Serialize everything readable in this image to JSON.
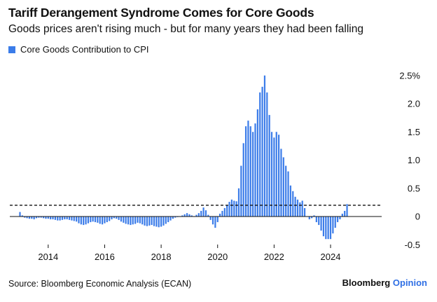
{
  "header": {
    "title": "Tariff Derangement Syndrome Comes for Core Goods",
    "subtitle": "Goods prices aren't rising much - but for many years they had been falling"
  },
  "footer": {
    "source": "Source: Bloomberg Economic Analysis (ECAN)",
    "brand_main": "Bloomberg",
    "brand_accent": "Opinion"
  },
  "colors": {
    "bar": "#3b7ce9",
    "brand_accent": "#2f6fe4"
  },
  "chart_data": {
    "type": "bar",
    "title": "Tariff Derangement Syndrome Comes for Core Goods",
    "subtitle": "Goods prices aren't rising much - but for many years they had been falling",
    "legend": [
      "Core Goods Contribution to CPI"
    ],
    "legend_position": "top-left",
    "xlabel": "",
    "ylabel": "",
    "y_unit_suffix": "%",
    "ylim": [
      -0.7,
      2.5
    ],
    "yticks": [
      -0.5,
      0,
      0.5,
      1.0,
      1.5,
      2.0,
      2.5
    ],
    "ytick_labels": [
      "-0.5",
      "0",
      "0.5",
      "1.0",
      "1.5",
      "2.0",
      "2.5%"
    ],
    "xticks": [
      "2014",
      "2016",
      "2018",
      "2020",
      "2022",
      "2024"
    ],
    "x_start": "2013-01",
    "frequency": "monthly",
    "reference_line": {
      "value": 0.2,
      "style": "dashed"
    },
    "grid": false,
    "series": [
      {
        "name": "Core Goods Contribution to CPI",
        "values": [
          0.08,
          0.02,
          -0.02,
          -0.03,
          -0.04,
          -0.04,
          -0.05,
          -0.03,
          -0.02,
          -0.02,
          -0.03,
          -0.04,
          -0.04,
          -0.05,
          -0.05,
          -0.06,
          -0.07,
          -0.07,
          -0.06,
          -0.05,
          -0.05,
          -0.06,
          -0.07,
          -0.08,
          -0.09,
          -0.12,
          -0.14,
          -0.15,
          -0.14,
          -0.12,
          -0.1,
          -0.09,
          -0.1,
          -0.11,
          -0.13,
          -0.14,
          -0.12,
          -0.1,
          -0.08,
          -0.05,
          -0.03,
          -0.04,
          -0.06,
          -0.09,
          -0.11,
          -0.13,
          -0.14,
          -0.15,
          -0.14,
          -0.13,
          -0.11,
          -0.12,
          -0.14,
          -0.16,
          -0.17,
          -0.16,
          -0.15,
          -0.17,
          -0.18,
          -0.19,
          -0.18,
          -0.16,
          -0.13,
          -0.1,
          -0.07,
          -0.04,
          -0.02,
          -0.01,
          0.0,
          0.02,
          0.04,
          0.06,
          0.04,
          0.02,
          0.0,
          0.03,
          0.06,
          0.1,
          0.16,
          0.11,
          0.03,
          -0.06,
          -0.14,
          -0.2,
          -0.1,
          0.05,
          0.1,
          0.15,
          0.2,
          0.26,
          0.3,
          0.28,
          0.27,
          0.5,
          0.9,
          1.3,
          1.6,
          1.7,
          1.6,
          1.5,
          1.65,
          1.9,
          2.2,
          2.3,
          2.5,
          2.2,
          1.8,
          1.5,
          1.4,
          1.5,
          1.45,
          1.2,
          1.05,
          0.9,
          0.8,
          0.55,
          0.45,
          0.35,
          0.3,
          0.25,
          0.28,
          0.15,
          0.0,
          -0.05,
          -0.03,
          0.02,
          -0.1,
          -0.15,
          -0.25,
          -0.35,
          -0.4,
          -0.4,
          -0.4,
          -0.3,
          -0.2,
          -0.1,
          -0.05,
          0.05,
          0.1,
          0.22
        ]
      }
    ]
  }
}
